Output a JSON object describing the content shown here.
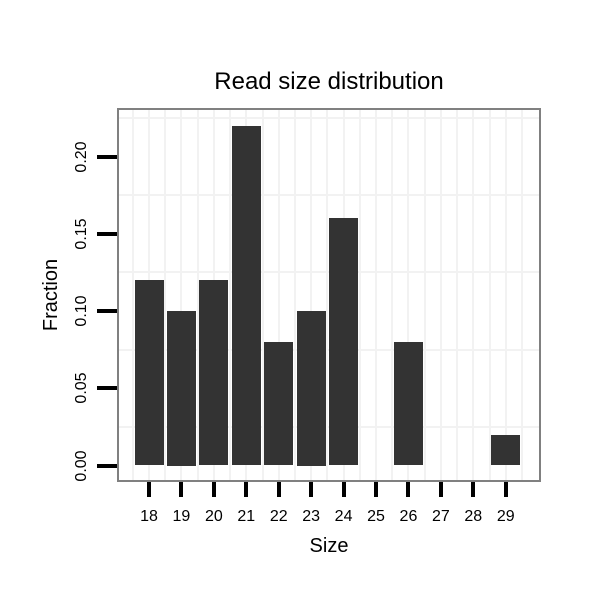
{
  "chart_data": {
    "type": "bar",
    "title": "Read size distribution",
    "xlabel": "Size",
    "ylabel": "Fraction",
    "categories": [
      "18",
      "19",
      "20",
      "21",
      "22",
      "23",
      "24",
      "25",
      "26",
      "27",
      "28",
      "29"
    ],
    "values": [
      0.12,
      0.1,
      0.12,
      0.22,
      0.08,
      0.1,
      0.16,
      0,
      0.08,
      0,
      0,
      0.02
    ],
    "y_tick_labels": [
      "0.00",
      "0.05",
      "0.10",
      "0.15",
      "0.20"
    ],
    "y_tick_values": [
      0,
      0.05,
      0.1,
      0.15,
      0.2
    ],
    "ylim": [
      0,
      0.23
    ],
    "grid": "light gridlines between ticks, horizontal at 0.025 offsets, vertical at category midpoints and centers",
    "legend": "none",
    "colors": {
      "bar_fill": "#333333",
      "panel_border": "#808080",
      "gridline": "#f2f2f2",
      "text": "#000000",
      "background": "#ffffff"
    }
  }
}
